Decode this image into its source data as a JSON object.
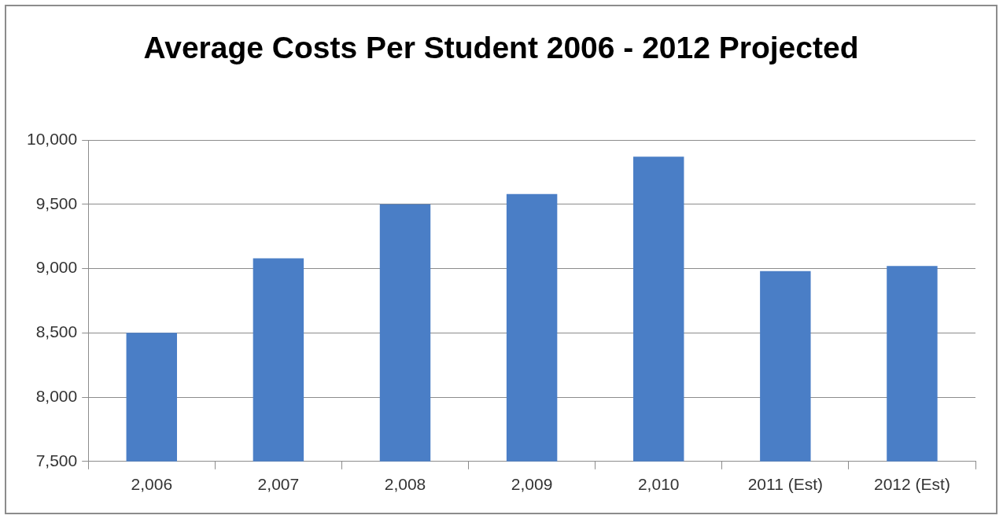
{
  "chart_data": {
    "type": "bar",
    "title": "Average Costs Per Student 2006 - 2012 Projected",
    "categories": [
      "2,006",
      "2,007",
      "2,008",
      "2,009",
      "2,010",
      "2011 (Est)",
      "2012 (Est)"
    ],
    "values": [
      8500,
      9080,
      9500,
      9580,
      9870,
      8980,
      9020
    ],
    "color": "#4a7ec6",
    "ylim": [
      7500,
      10000
    ],
    "yticks": [
      {
        "value": 7500,
        "label": "7,500"
      },
      {
        "value": 8000,
        "label": "8,000"
      },
      {
        "value": 8500,
        "label": "8,500"
      },
      {
        "value": 9000,
        "label": "9,000"
      },
      {
        "value": 9500,
        "label": "9,500"
      },
      {
        "value": 10000,
        "label": "10,000"
      }
    ],
    "grid": "y",
    "legend": false
  }
}
